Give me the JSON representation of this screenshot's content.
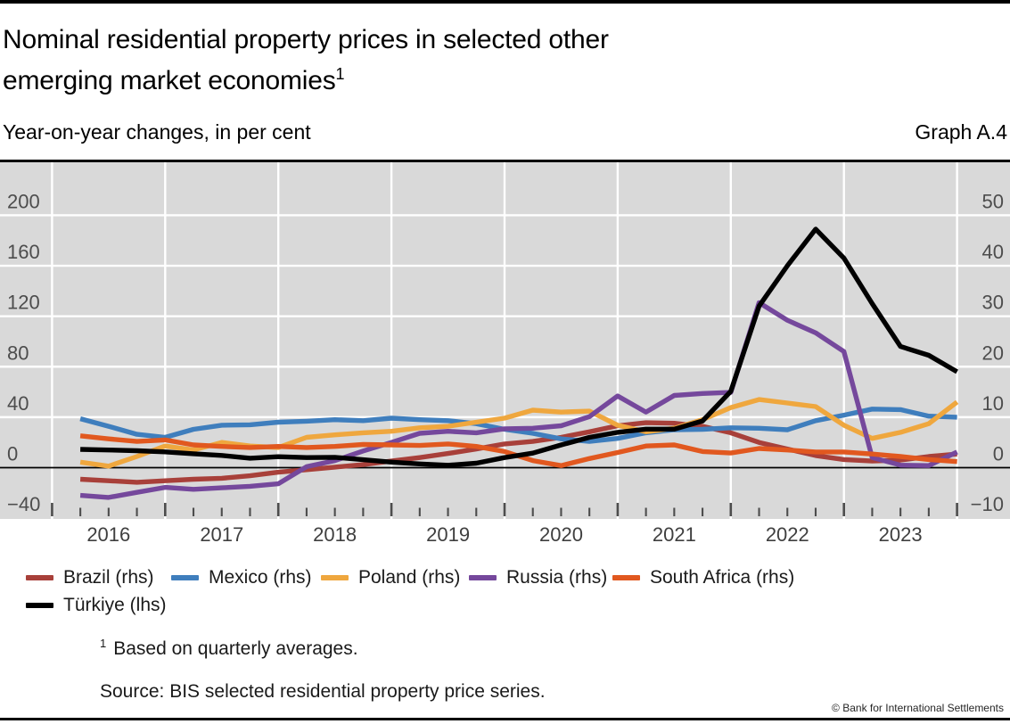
{
  "header": {
    "title_line1": "Nominal residential property prices in selected other",
    "title_line2": "emerging market economies",
    "title_superscript": "1",
    "subtitle": "Year-on-year changes, in per cent",
    "graph_label": "Graph A.4"
  },
  "footnotes": {
    "footnote_marker": "1",
    "footnote_text": "Based on quarterly averages.",
    "source": "Source: BIS selected residential property price series.",
    "copyright": "© Bank for International Settlements"
  },
  "colors": {
    "plot_background": "#d9d9d9",
    "gridline": "#ffffff",
    "zero_line": "#000000",
    "axis_text": "#4d4d4d",
    "year_text": "#3f3f3f",
    "rule": "#000000"
  },
  "chart_data": {
    "type": "line",
    "title": "Nominal residential property prices in selected other emerging market economies",
    "subtitle": "Year-on-year changes, in per cent",
    "grid": true,
    "legend_position": "bottom",
    "x": [
      "2016Q1",
      "2016Q2",
      "2016Q3",
      "2016Q4",
      "2017Q1",
      "2017Q2",
      "2017Q3",
      "2017Q4",
      "2018Q1",
      "2018Q2",
      "2018Q3",
      "2018Q4",
      "2019Q1",
      "2019Q2",
      "2019Q3",
      "2019Q4",
      "2020Q1",
      "2020Q2",
      "2020Q3",
      "2020Q4",
      "2021Q1",
      "2021Q2",
      "2021Q3",
      "2021Q4",
      "2022Q1",
      "2022Q2",
      "2022Q3",
      "2022Q4",
      "2023Q1",
      "2023Q2",
      "2023Q3",
      "2023Q4"
    ],
    "year_labels": [
      "2016",
      "2017",
      "2018",
      "2019",
      "2020",
      "2021",
      "2022",
      "2023"
    ],
    "left_axis": {
      "side": "lhs",
      "ticks": [
        200,
        160,
        120,
        80,
        40,
        0,
        -40
      ],
      "range": [
        -40,
        242
      ]
    },
    "right_axis": {
      "side": "rhs",
      "ticks": [
        50,
        40,
        30,
        20,
        10,
        0,
        -10
      ],
      "range": [
        -10,
        60.5
      ]
    },
    "series": [
      {
        "name": "Brazil (rhs)",
        "axis": "rhs",
        "color": "#a8403a",
        "values": [
          -2.3,
          -2.6,
          -2.9,
          -2.6,
          -2.3,
          -2.1,
          -1.6,
          -0.9,
          -0.4,
          0.1,
          0.6,
          1.3,
          2.0,
          2.8,
          3.7,
          4.7,
          5.2,
          6.0,
          7.1,
          8.3,
          8.9,
          8.8,
          8.2,
          6.9,
          5.0,
          3.7,
          2.4,
          1.6,
          1.3,
          1.5,
          2.2,
          2.7
        ]
      },
      {
        "name": "Mexico (rhs)",
        "axis": "rhs",
        "color": "#3f7ebd",
        "values": [
          9.7,
          8.2,
          6.6,
          6.0,
          7.6,
          8.4,
          8.5,
          9.0,
          9.2,
          9.5,
          9.3,
          9.8,
          9.5,
          9.3,
          8.7,
          7.6,
          6.8,
          5.7,
          5.2,
          5.8,
          6.9,
          7.5,
          7.6,
          7.9,
          7.8,
          7.5,
          9.3,
          10.4,
          11.6,
          11.5,
          10.2,
          10.0
        ]
      },
      {
        "name": "Poland (rhs)",
        "axis": "rhs",
        "color": "#efa73e",
        "values": [
          1.1,
          0.3,
          2.2,
          4.3,
          3.5,
          5.0,
          4.3,
          4.0,
          6.0,
          6.5,
          6.9,
          7.2,
          7.9,
          8.2,
          9.0,
          9.8,
          11.4,
          11.0,
          11.2,
          8.4,
          7.1,
          7.8,
          9.5,
          11.9,
          13.5,
          12.8,
          12.1,
          8.4,
          5.8,
          7.0,
          8.7,
          13.0
        ]
      },
      {
        "name": "Russia (rhs)",
        "axis": "rhs",
        "color": "#75489c",
        "values": [
          -5.5,
          -5.9,
          -4.9,
          -3.9,
          -4.3,
          -4.0,
          -3.7,
          -3.2,
          0.2,
          1.4,
          3.3,
          5.0,
          6.8,
          7.2,
          6.9,
          7.7,
          7.8,
          8.3,
          10.1,
          14.2,
          11.0,
          14.3,
          14.7,
          14.9,
          32.7,
          29.2,
          26.7,
          23.0,
          2.0,
          0.5,
          0.4,
          3.1
        ]
      },
      {
        "name": "South Africa (rhs)",
        "axis": "rhs",
        "color": "#e1581f",
        "values": [
          6.3,
          5.7,
          5.2,
          5.5,
          4.5,
          4.2,
          4.0,
          4.2,
          4.0,
          4.2,
          4.6,
          4.5,
          4.4,
          4.7,
          4.2,
          3.2,
          1.4,
          0.4,
          1.8,
          3.0,
          4.3,
          4.5,
          3.2,
          2.9,
          3.8,
          3.5,
          3.1,
          3.1,
          2.7,
          2.2,
          1.6,
          1.2
        ]
      },
      {
        "name": "Türkiye (lhs)",
        "axis": "lhs",
        "color": "#000000",
        "values": [
          14.5,
          14.0,
          13.4,
          12.5,
          11.0,
          9.7,
          7.5,
          8.7,
          8.0,
          8.2,
          6.3,
          4.4,
          3.0,
          1.9,
          3.5,
          8.0,
          11.5,
          18.0,
          24.0,
          28.0,
          30.5,
          30.5,
          37.0,
          60.5,
          128,
          160,
          189,
          166,
          130,
          96,
          89,
          76
        ]
      }
    ]
  }
}
